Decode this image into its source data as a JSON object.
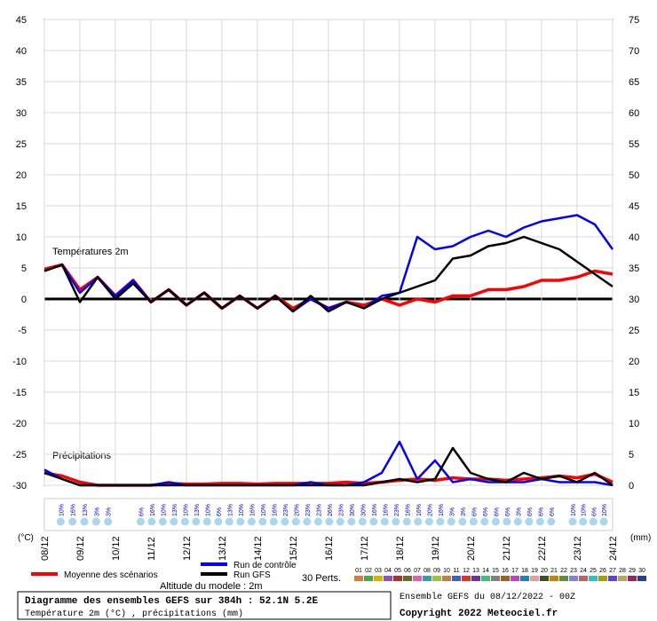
{
  "chart_data": {
    "type": "line",
    "label_temp": "Températures 2m",
    "label_precip": "Précipitations",
    "y_unit": "(°C)",
    "y2_unit": "(mm)",
    "title": "Diagramme des ensembles GEFS sur 384h : 52.1N 5.2E",
    "subtitle": "Température 2m (°C) , précipitations (mm)",
    "run_info": "Ensemble GEFS du 08/12/2022 - 00Z",
    "copyright": "Copyright 2022 Meteociel.fr",
    "altitude": "Altitude du modele : 2m",
    "perturbations_label": "30 Perts.",
    "perturbations": [
      {
        "name": "01",
        "color": "#e07a30"
      },
      {
        "name": "02",
        "color": "#4aa84a"
      },
      {
        "name": "03",
        "color": "#d8b400"
      },
      {
        "name": "04",
        "color": "#9050c0"
      },
      {
        "name": "05",
        "color": "#b03030"
      },
      {
        "name": "06",
        "color": "#6a6a20"
      },
      {
        "name": "07",
        "color": "#e060b0"
      },
      {
        "name": "08",
        "color": "#30a0a0"
      },
      {
        "name": "09",
        "color": "#a0c040"
      },
      {
        "name": "10",
        "color": "#c08040"
      },
      {
        "name": "11",
        "color": "#4060d0"
      },
      {
        "name": "12",
        "color": "#e03030"
      },
      {
        "name": "13",
        "color": "#7030a0"
      },
      {
        "name": "14",
        "color": "#40c080"
      },
      {
        "name": "15",
        "color": "#808080"
      },
      {
        "name": "16",
        "color": "#a06020"
      },
      {
        "name": "17",
        "color": "#c040c0"
      },
      {
        "name": "18",
        "color": "#2080c0"
      },
      {
        "name": "19",
        "color": "#e0a0a0"
      },
      {
        "name": "20",
        "color": "#405020"
      },
      {
        "name": "21",
        "color": "#d08000"
      },
      {
        "name": "22",
        "color": "#609030"
      },
      {
        "name": "23",
        "color": "#8080e0"
      },
      {
        "name": "24",
        "color": "#c06060"
      },
      {
        "name": "25",
        "color": "#30c0c0"
      },
      {
        "name": "26",
        "color": "#a0a000"
      },
      {
        "name": "27",
        "color": "#6040e0"
      },
      {
        "name": "28",
        "color": "#c0a060"
      },
      {
        "name": "29",
        "color": "#a02060"
      },
      {
        "name": "30",
        "color": "#2040a0"
      }
    ],
    "x": [
      0,
      12,
      24,
      36,
      48,
      60,
      72,
      84,
      96,
      108,
      120,
      132,
      144,
      156,
      168,
      180,
      192,
      204,
      216,
      228,
      240,
      252,
      264,
      276,
      288,
      300,
      312,
      324,
      336,
      348,
      360,
      372,
      384
    ],
    "xlim": [
      0,
      384
    ],
    "xticks": [
      {
        "value": 0,
        "label": "08/12"
      },
      {
        "value": 24,
        "label": "09/12"
      },
      {
        "value": 48,
        "label": "10/12"
      },
      {
        "value": 72,
        "label": "11/12"
      },
      {
        "value": 96,
        "label": "12/12"
      },
      {
        "value": 120,
        "label": "13/12"
      },
      {
        "value": 144,
        "label": "14/12"
      },
      {
        "value": 168,
        "label": "15/12"
      },
      {
        "value": 192,
        "label": "16/12"
      },
      {
        "value": 216,
        "label": "17/12"
      },
      {
        "value": 240,
        "label": "18/12"
      },
      {
        "value": 264,
        "label": "19/12"
      },
      {
        "value": 288,
        "label": "20/12"
      },
      {
        "value": 312,
        "label": "21/12"
      },
      {
        "value": 336,
        "label": "22/12"
      },
      {
        "value": 360,
        "label": "23/12"
      },
      {
        "value": 384,
        "label": "24/12"
      }
    ],
    "ylim": [
      -30,
      45
    ],
    "yticks": [
      -30,
      -25,
      -20,
      -15,
      -10,
      -5,
      0,
      5,
      10,
      15,
      20,
      25,
      30,
      35,
      40,
      45
    ],
    "y2lim": [
      0,
      75
    ],
    "y2ticks": [
      0,
      5,
      10,
      15,
      20,
      25,
      30,
      35,
      40,
      45,
      50,
      55,
      60,
      65,
      70,
      75
    ],
    "grid": true,
    "series": [
      {
        "name": "Moyenne des scénarios",
        "color": "#ff0000",
        "axis": "y",
        "values": [
          4.8,
          5.5,
          1.5,
          3.5,
          0.5,
          3,
          -0.5,
          1.5,
          -1,
          1,
          -1.5,
          0.5,
          -1.5,
          0.5,
          -1.5,
          0,
          -1.5,
          -0.5,
          -1,
          0,
          -1,
          0,
          -0.5,
          0.5,
          0.5,
          1.5,
          1.5,
          2,
          3,
          3,
          3.5,
          4.5,
          4
        ]
      },
      {
        "name": "Run de contrôle",
        "color": "#0000ff",
        "axis": "y",
        "values": [
          4.5,
          5.5,
          1,
          3.5,
          0.5,
          3,
          -0.5,
          1.5,
          -1,
          1,
          -1.5,
          0.5,
          -1.5,
          0.5,
          -2,
          0,
          -1.5,
          -0.5,
          -1.5,
          0.5,
          1,
          10,
          8,
          8.5,
          10,
          11,
          10,
          11.5,
          12.5,
          13,
          13.5,
          12,
          8
        ]
      },
      {
        "name": "Run GFS",
        "color": "#000000",
        "axis": "y",
        "values": [
          4.5,
          5.5,
          -0.5,
          3.5,
          0,
          2.5,
          -0.5,
          1.5,
          -1,
          1,
          -1.5,
          0.5,
          -1.5,
          0.5,
          -2,
          0.5,
          -2,
          -0.5,
          -1.5,
          0,
          1,
          2,
          3,
          6.5,
          7,
          8.5,
          9,
          10,
          9,
          8,
          6,
          4,
          2
        ]
      },
      {
        "axis": "y2",
        "color": "#ff0000",
        "values": [
          2,
          1.5,
          0.5,
          0,
          0,
          0,
          0,
          0.3,
          0.2,
          0.2,
          0.3,
          0.3,
          0.2,
          0.3,
          0.3,
          0.3,
          0.3,
          0.5,
          0.3,
          0.5,
          0.8,
          1,
          0.8,
          1.2,
          1,
          1,
          0.8,
          1,
          1.2,
          1.5,
          1.2,
          1.8,
          0.5
        ]
      },
      {
        "axis": "y2",
        "color": "#0000ff",
        "values": [
          2.5,
          1,
          0,
          0,
          0,
          0,
          0,
          0.5,
          0,
          0,
          0,
          0,
          0,
          0,
          0,
          0.5,
          0,
          0,
          0.5,
          2,
          7,
          1,
          4,
          0.5,
          1,
          0.5,
          0.5,
          0.5,
          1,
          0.5,
          0.5,
          0.5,
          0
        ]
      },
      {
        "axis": "y2",
        "color": "#000000",
        "values": [
          2,
          1,
          0,
          0,
          0,
          0,
          0,
          0,
          0,
          0,
          0,
          0,
          0,
          0,
          0,
          0,
          0,
          0,
          0,
          0.5,
          1,
          0.5,
          1,
          6,
          2,
          1,
          0.5,
          2,
          1,
          1.5,
          0.5,
          2,
          0
        ]
      }
    ],
    "snow_risk": {
      "x": [
        11,
        19,
        27,
        35,
        43,
        65,
        72.5,
        80,
        87.5,
        95,
        102.5,
        110,
        117.5,
        125,
        132.5,
        140,
        147.5,
        155,
        162.5,
        170,
        177.5,
        185,
        192.5,
        200,
        207.5,
        215,
        222.5,
        230,
        237.5,
        245,
        252.5,
        260,
        267.5,
        275,
        282.5,
        290,
        297.5,
        305,
        312.5,
        320,
        327.5,
        335,
        342.5,
        357,
        364,
        371,
        378
      ],
      "values": [
        10,
        16,
        13,
        3,
        3,
        6,
        16,
        10,
        13,
        10,
        13,
        10,
        6,
        13,
        10,
        16,
        10,
        16,
        23,
        20,
        23,
        23,
        26,
        23,
        30,
        30,
        16,
        16,
        23,
        16,
        16,
        20,
        16,
        3,
        3,
        6,
        6,
        6,
        6,
        3,
        6,
        6,
        6,
        10,
        10,
        6,
        10
      ],
      "value_labels": [
        "10%",
        "16%",
        "13%",
        "3%",
        "3%",
        "6%",
        "16%",
        "10%",
        "13%",
        "10%",
        "13%",
        "10%",
        "6%",
        "13%",
        "10%",
        "16%",
        "10%",
        "16%",
        "23%",
        "20%",
        "23%",
        "23%",
        "26%",
        "23%",
        "30%",
        "30%",
        "16%",
        "16%",
        "23%",
        "16%",
        "16%",
        "20%",
        "16%",
        "3%",
        "3%",
        "6%",
        "6%",
        "6%",
        "6%",
        "3%",
        "6%",
        "6%",
        "6%",
        "10%",
        "10%",
        "6%",
        "10%"
      ]
    }
  }
}
